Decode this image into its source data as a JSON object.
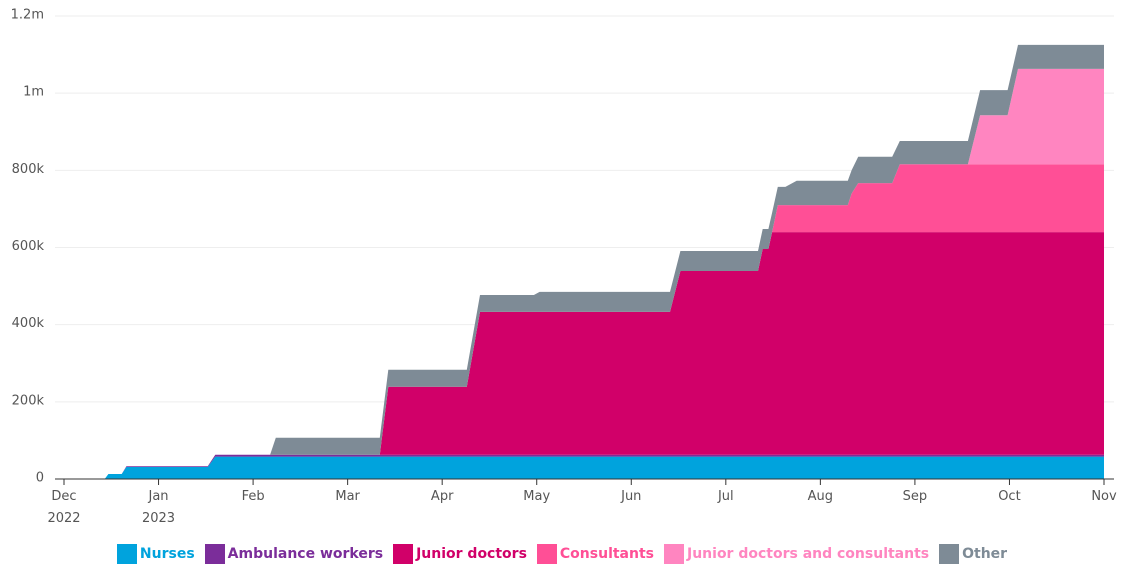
{
  "chart_data": {
    "type": "stacked_area",
    "x": [
      0,
      0.43,
      0.47,
      0.61,
      0.66,
      1.52,
      1.6,
      2.18,
      2.24,
      3.34,
      3.43,
      4.26,
      4.4,
      4.97,
      5.03,
      6.41,
      6.52,
      7.34,
      7.39,
      7.45,
      7.49,
      7.55,
      7.63,
      7.75,
      8.29,
      8.33,
      8.4,
      8.76,
      8.84,
      9.56,
      9.69,
      9.98,
      10.09,
      11
    ],
    "series": [
      {
        "name": "Nurses",
        "color": "#00a3dd",
        "values": [
          0,
          0,
          13000,
          13000,
          31000,
          31000,
          58000,
          58000,
          58000,
          58000,
          58000,
          58000,
          58000,
          58000,
          58000,
          58000,
          58000,
          58000,
          58000,
          58000,
          58000,
          58000,
          58000,
          58000,
          58000,
          58000,
          58000,
          58000,
          58000,
          58000,
          58000,
          58000,
          58000,
          58000
        ]
      },
      {
        "name": "Ambulance workers",
        "color": "#7b2d9a",
        "values": [
          0,
          0,
          0,
          0,
          2000,
          2000,
          5000,
          5000,
          5000,
          5000,
          5000,
          5000,
          5000,
          5000,
          5000,
          5000,
          5000,
          5000,
          5000,
          5000,
          5000,
          5000,
          5000,
          5000,
          5000,
          5000,
          5000,
          5000,
          5000,
          5000,
          5000,
          5000,
          5000,
          5000
        ]
      },
      {
        "name": "Junior doctors",
        "color": "#d10069",
        "values": [
          0,
          0,
          0,
          0,
          0,
          0,
          0,
          0,
          0,
          0,
          176000,
          176000,
          370000,
          370000,
          370000,
          370000,
          476000,
          476000,
          533000,
          533000,
          577000,
          577000,
          577000,
          577000,
          577000,
          577000,
          577000,
          577000,
          577000,
          577000,
          577000,
          577000,
          577000,
          577000
        ]
      },
      {
        "name": "Consultants",
        "color": "#ff4f96",
        "values": [
          0,
          0,
          0,
          0,
          0,
          0,
          0,
          0,
          0,
          0,
          0,
          0,
          0,
          0,
          0,
          0,
          0,
          0,
          0,
          0,
          0,
          70000,
          70000,
          70000,
          70000,
          100000,
          127000,
          127000,
          176000,
          176000,
          176000,
          176000,
          176000,
          176000
        ]
      },
      {
        "name": "Junior doctors and consultants",
        "color": "#ff85c0",
        "values": [
          0,
          0,
          0,
          0,
          0,
          0,
          0,
          0,
          0,
          0,
          0,
          0,
          0,
          0,
          0,
          0,
          0,
          0,
          0,
          0,
          0,
          0,
          0,
          0,
          0,
          0,
          0,
          0,
          0,
          0,
          127000,
          127000,
          247000,
          247000
        ]
      },
      {
        "name": "Other",
        "color": "#7e8b96",
        "values": [
          0,
          0,
          0,
          0,
          0,
          0,
          0,
          0,
          44000,
          44000,
          44000,
          44000,
          44000,
          44000,
          52000,
          52000,
          52000,
          52000,
          52000,
          52000,
          50000,
          47000,
          47000,
          63000,
          63000,
          60000,
          68000,
          68000,
          60000,
          60000,
          65000,
          65000,
          62000,
          62000
        ]
      }
    ],
    "xlim": [
      0,
      11
    ],
    "xticks": [
      {
        "value": 0,
        "label": "Dec 2022"
      },
      {
        "value": 1,
        "label": "Jan 2023"
      },
      {
        "value": 2,
        "label": "Feb"
      },
      {
        "value": 3,
        "label": "Mar"
      },
      {
        "value": 4,
        "label": "Apr"
      },
      {
        "value": 5,
        "label": "May"
      },
      {
        "value": 6,
        "label": "Jun"
      },
      {
        "value": 7,
        "label": "Jul"
      },
      {
        "value": 8,
        "label": "Aug"
      },
      {
        "value": 9,
        "label": "Sep"
      },
      {
        "value": 10,
        "label": "Oct"
      },
      {
        "value": 11,
        "label": "Nov"
      }
    ],
    "ylim": [
      0,
      1200000
    ],
    "yticks": [
      0,
      {
        "value": 200000,
        "label": "200k"
      },
      {
        "value": 400000,
        "label": "400k"
      },
      {
        "value": 600000,
        "label": "600k"
      },
      {
        "value": 800000,
        "label": "800k"
      },
      {
        "value": 1000000,
        "label": "1m"
      },
      {
        "value": 1200000,
        "label": "1.2m"
      }
    ],
    "grid": true,
    "legend": "bottom"
  }
}
